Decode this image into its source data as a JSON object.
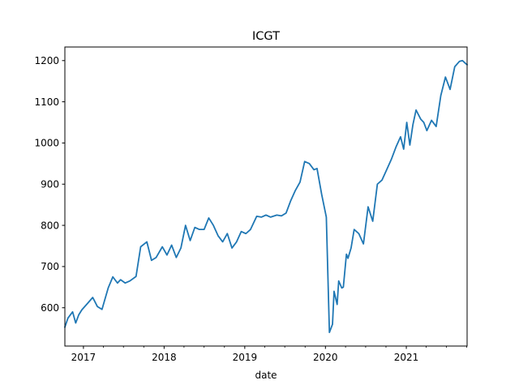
{
  "chart_data": {
    "type": "line",
    "title": "ICGT",
    "xlabel": "date",
    "ylabel": "",
    "x_type": "date",
    "xlim": [
      "2016-10-09",
      "2021-10-03"
    ],
    "ylim": [
      507,
      1233
    ],
    "x_ticks": [
      {
        "value": "2017-01-01",
        "label": "2017"
      },
      {
        "value": "2018-01-01",
        "label": "2018"
      },
      {
        "value": "2019-01-01",
        "label": "2019"
      },
      {
        "value": "2020-01-01",
        "label": "2020"
      },
      {
        "value": "2021-01-01",
        "label": "2021"
      }
    ],
    "y_ticks": [
      600,
      700,
      800,
      900,
      1000,
      1100,
      1200
    ],
    "grid": false,
    "line_color": "#1f77b4",
    "series": [
      {
        "x": [
          "2016-10-09",
          "2016-10-23",
          "2016-11-13",
          "2016-11-27",
          "2016-12-11",
          "2016-12-25",
          "2017-01-22",
          "2017-02-12",
          "2017-03-05",
          "2017-03-26",
          "2017-04-23",
          "2017-05-14",
          "2017-06-04",
          "2017-06-18",
          "2017-07-09",
          "2017-07-30",
          "2017-08-27",
          "2017-09-17",
          "2017-10-15",
          "2017-11-05",
          "2017-11-26",
          "2017-12-24",
          "2018-01-14",
          "2018-02-04",
          "2018-02-25",
          "2018-03-18",
          "2018-04-08",
          "2018-04-29",
          "2018-05-20",
          "2018-06-10",
          "2018-07-01",
          "2018-07-22",
          "2018-08-12",
          "2018-09-02",
          "2018-09-23",
          "2018-10-14",
          "2018-11-04",
          "2018-11-25",
          "2018-12-16",
          "2019-01-06",
          "2019-01-27",
          "2019-02-24",
          "2019-03-17",
          "2019-04-07",
          "2019-04-28",
          "2019-05-26",
          "2019-06-16",
          "2019-07-07",
          "2019-07-28",
          "2019-08-18",
          "2019-09-08",
          "2019-09-29",
          "2019-10-20",
          "2019-11-10",
          "2019-11-24",
          "2019-12-15",
          "2020-01-05",
          "2020-01-19",
          "2020-02-02",
          "2020-02-09",
          "2020-02-23",
          "2020-03-01",
          "2020-03-15",
          "2020-03-22",
          "2020-04-05",
          "2020-04-12",
          "2020-04-26",
          "2020-05-10",
          "2020-05-31",
          "2020-06-21",
          "2020-07-12",
          "2020-08-02",
          "2020-08-23",
          "2020-09-13",
          "2020-10-04",
          "2020-10-25",
          "2020-11-15",
          "2020-12-06",
          "2020-12-20",
          "2021-01-03",
          "2021-01-17",
          "2021-01-31",
          "2021-02-14",
          "2021-03-07",
          "2021-03-21",
          "2021-04-04",
          "2021-04-25",
          "2021-05-16",
          "2021-06-06",
          "2021-06-27",
          "2021-07-18",
          "2021-08-08",
          "2021-08-29",
          "2021-09-12",
          "2021-09-26",
          "2021-10-03"
        ],
        "y": [
          553,
          575,
          590,
          563,
          583,
          595,
          612,
          625,
          603,
          596,
          648,
          675,
          660,
          668,
          660,
          665,
          676,
          748,
          760,
          715,
          722,
          748,
          728,
          752,
          722,
          745,
          800,
          763,
          795,
          790,
          790,
          818,
          800,
          775,
          760,
          780,
          745,
          760,
          785,
          780,
          790,
          822,
          820,
          825,
          820,
          825,
          823,
          830,
          860,
          885,
          905,
          955,
          950,
          935,
          938,
          875,
          820,
          540,
          560,
          640,
          608,
          665,
          648,
          650,
          730,
          720,
          745,
          790,
          780,
          755,
          845,
          810,
          900,
          910,
          935,
          960,
          990,
          1015,
          985,
          1050,
          995,
          1045,
          1080,
          1058,
          1050,
          1030,
          1055,
          1040,
          1115,
          1160,
          1130,
          1185,
          1198,
          1200,
          1193,
          1190
        ]
      }
    ]
  }
}
